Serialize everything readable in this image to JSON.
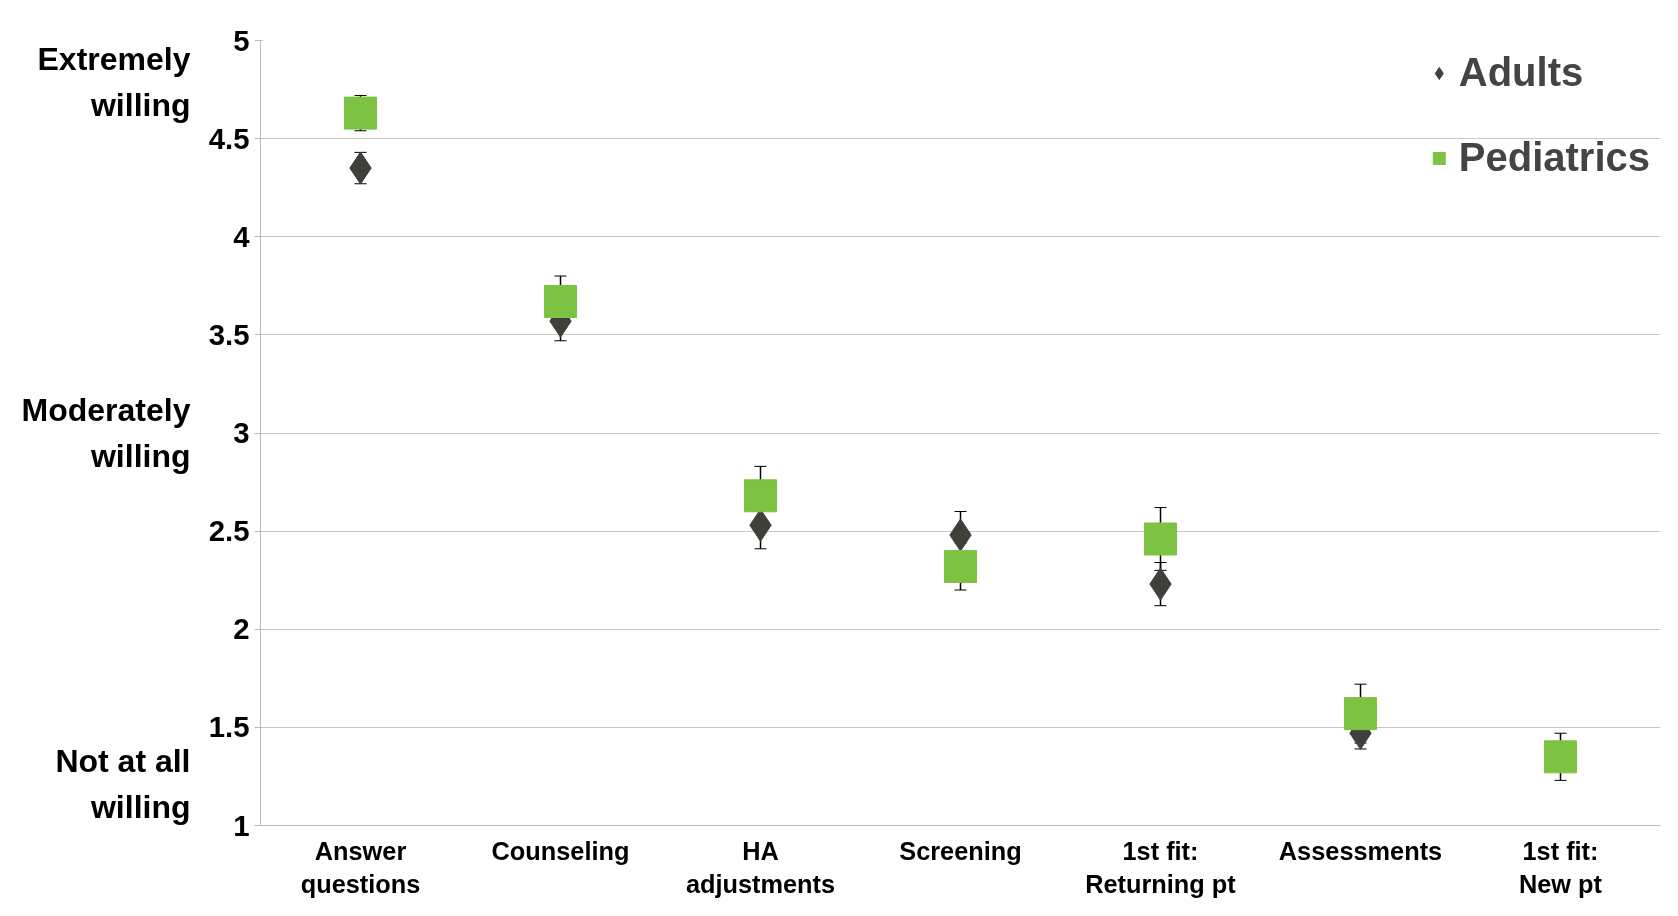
{
  "chart_data": {
    "type": "scatter",
    "categories": [
      "Answer questions",
      "Counseling",
      "HA adjustments",
      "Screening",
      "1st fit: Returning pt",
      "Assessments",
      "1st fit: New pt"
    ],
    "series": [
      {
        "name": "Adults",
        "color": "#3f4039",
        "marker": "diamond",
        "values": [
          4.35,
          3.57,
          2.53,
          2.48,
          2.23,
          1.47,
          null
        ],
        "errors": [
          0.08,
          0.1,
          0.12,
          0.12,
          0.11,
          0.08,
          null
        ]
      },
      {
        "name": "Pediatrics",
        "color": "#7dc242",
        "marker": "square",
        "values": [
          4.63,
          3.67,
          2.68,
          2.32,
          2.46,
          1.57,
          1.35
        ],
        "errors": [
          0.09,
          0.13,
          0.15,
          0.12,
          0.16,
          0.15,
          0.12
        ]
      }
    ],
    "ylim": [
      1,
      5
    ],
    "yticks": [
      1,
      1.5,
      2,
      2.5,
      3,
      3.5,
      4,
      4.5,
      5
    ],
    "annotations": [
      "Extremely willing",
      "Moderately willing",
      "Not at all willing"
    ],
    "grid": "y",
    "legend": "top right"
  }
}
